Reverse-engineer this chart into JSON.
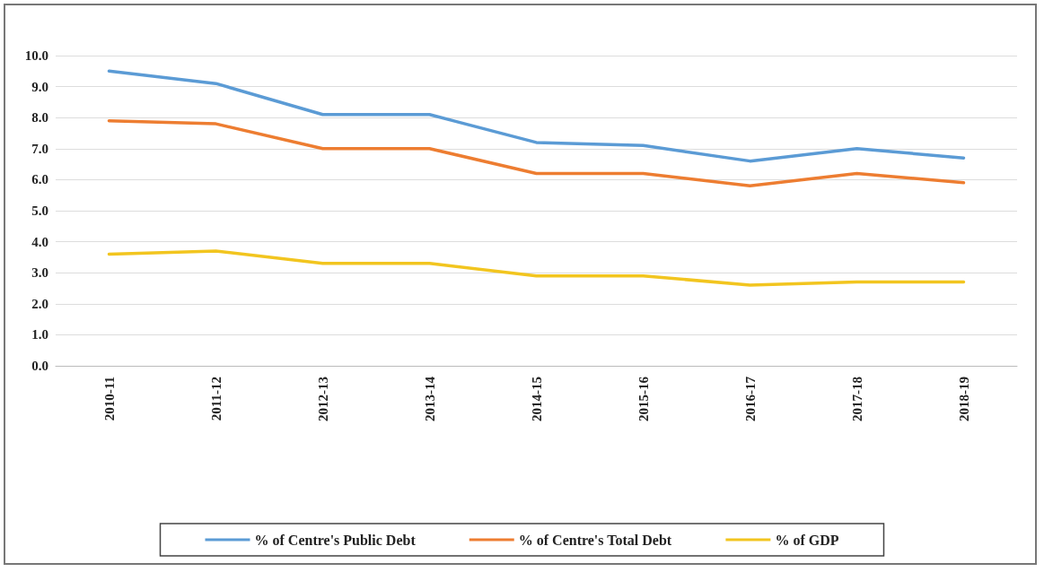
{
  "chart_data": {
    "type": "line",
    "categories": [
      "2010-11",
      "2011-12",
      "2012-13",
      "2013-14",
      "2014-15",
      "2015-16",
      "2016-17",
      "2017-18",
      "2018-19"
    ],
    "series": [
      {
        "name": "% of Centre's Public Debt",
        "color": "#5b9bd5",
        "values": [
          9.5,
          9.1,
          8.1,
          8.1,
          7.2,
          7.1,
          6.6,
          7.0,
          6.7
        ]
      },
      {
        "name": "% of Centre's Total Debt",
        "color": "#ed7d31",
        "values": [
          7.9,
          7.8,
          7.0,
          7.0,
          6.2,
          6.2,
          5.8,
          6.2,
          5.9
        ]
      },
      {
        "name": "% of GDP",
        "color": "#f2c51f",
        "values": [
          3.6,
          3.7,
          3.3,
          3.3,
          2.9,
          2.9,
          2.6,
          2.7,
          2.7
        ]
      }
    ],
    "ylim": [
      0,
      10
    ],
    "yticks": [
      {
        "value": 0,
        "label": "0.0"
      },
      {
        "value": 1,
        "label": "1.0"
      },
      {
        "value": 2,
        "label": "2.0"
      },
      {
        "value": 3,
        "label": "3.0"
      },
      {
        "value": 4,
        "label": "4.0"
      },
      {
        "value": 5,
        "label": "5.0"
      },
      {
        "value": 6,
        "label": "6.0"
      },
      {
        "value": 7,
        "label": "7.0"
      },
      {
        "value": 8,
        "label": "8.0"
      },
      {
        "value": 9,
        "label": "9.0"
      },
      {
        "value": 10,
        "label": "10.0"
      }
    ],
    "grid": "y",
    "legend": "bottom",
    "marker": "none",
    "line_style": "solid"
  }
}
